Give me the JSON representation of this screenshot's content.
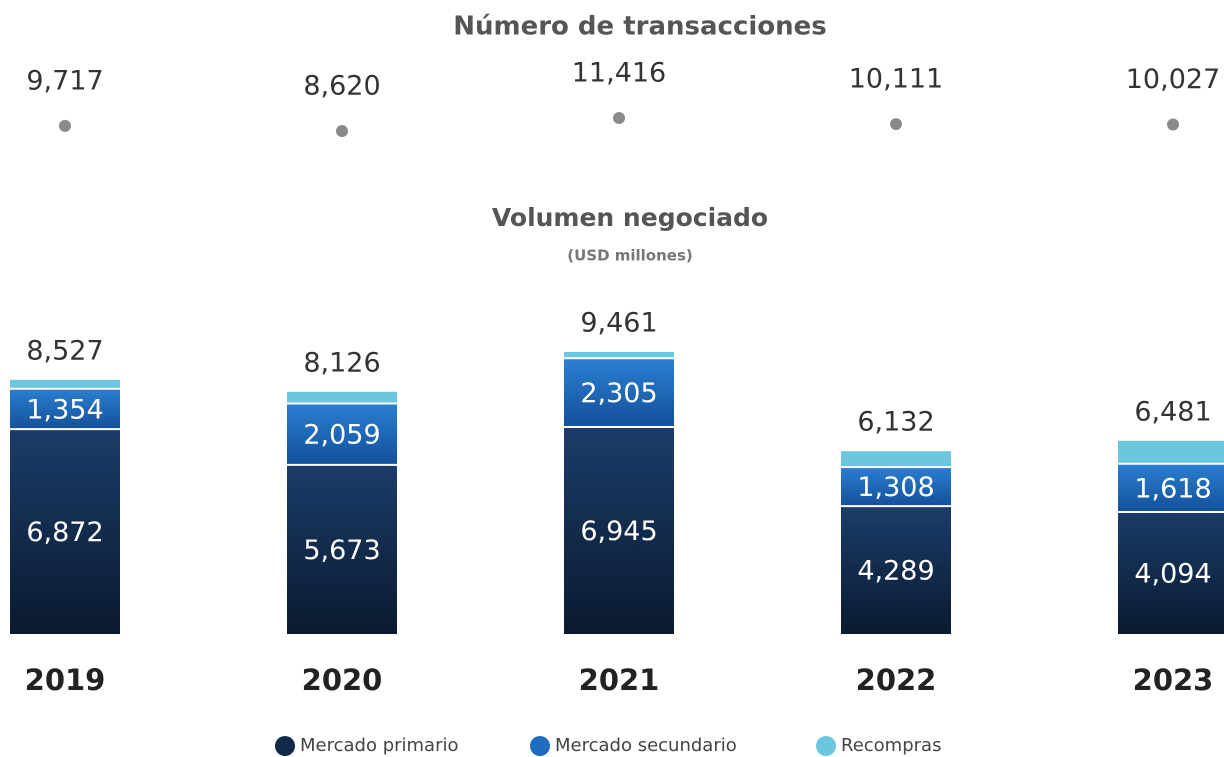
{
  "chart_data": [
    {
      "type": "dot",
      "title": "Número de transacciones",
      "values": [
        9717,
        8620,
        11416,
        10111,
        10027
      ],
      "value_labels": [
        "9,717",
        "8,620",
        "11,416",
        "10,111",
        "10,027"
      ],
      "color": "#8a8a8a"
    },
    {
      "type": "bar",
      "stacked": true,
      "title": "Volumen negociado",
      "subtitle": "(USD millones)",
      "categories": [
        "2019",
        "2020",
        "2021",
        "2022",
        "2023"
      ],
      "series": [
        {
          "name": "Mercado primario",
          "color": "#12294a",
          "values": [
            6872,
            5673,
            6945,
            4289,
            4094
          ],
          "value_labels": [
            "6,872",
            "5,673",
            "6,945",
            "4,289",
            "4,094"
          ]
        },
        {
          "name": "Mercado secundario",
          "color": "#1f6cc0",
          "values": [
            1354,
            2059,
            2305,
            1308,
            1618
          ],
          "value_labels": [
            "1,354",
            "2,059",
            "2,305",
            "1,308",
            "1,618"
          ]
        },
        {
          "name": "Recompras",
          "color": "#6cc6de",
          "values": [
            301,
            394,
            211,
            535,
            769
          ]
        }
      ],
      "totals": [
        8527,
        8126,
        9461,
        6132,
        6481
      ],
      "total_labels": [
        "8,527",
        "8,126",
        "9,461",
        "6,132",
        "6,481"
      ]
    }
  ]
}
